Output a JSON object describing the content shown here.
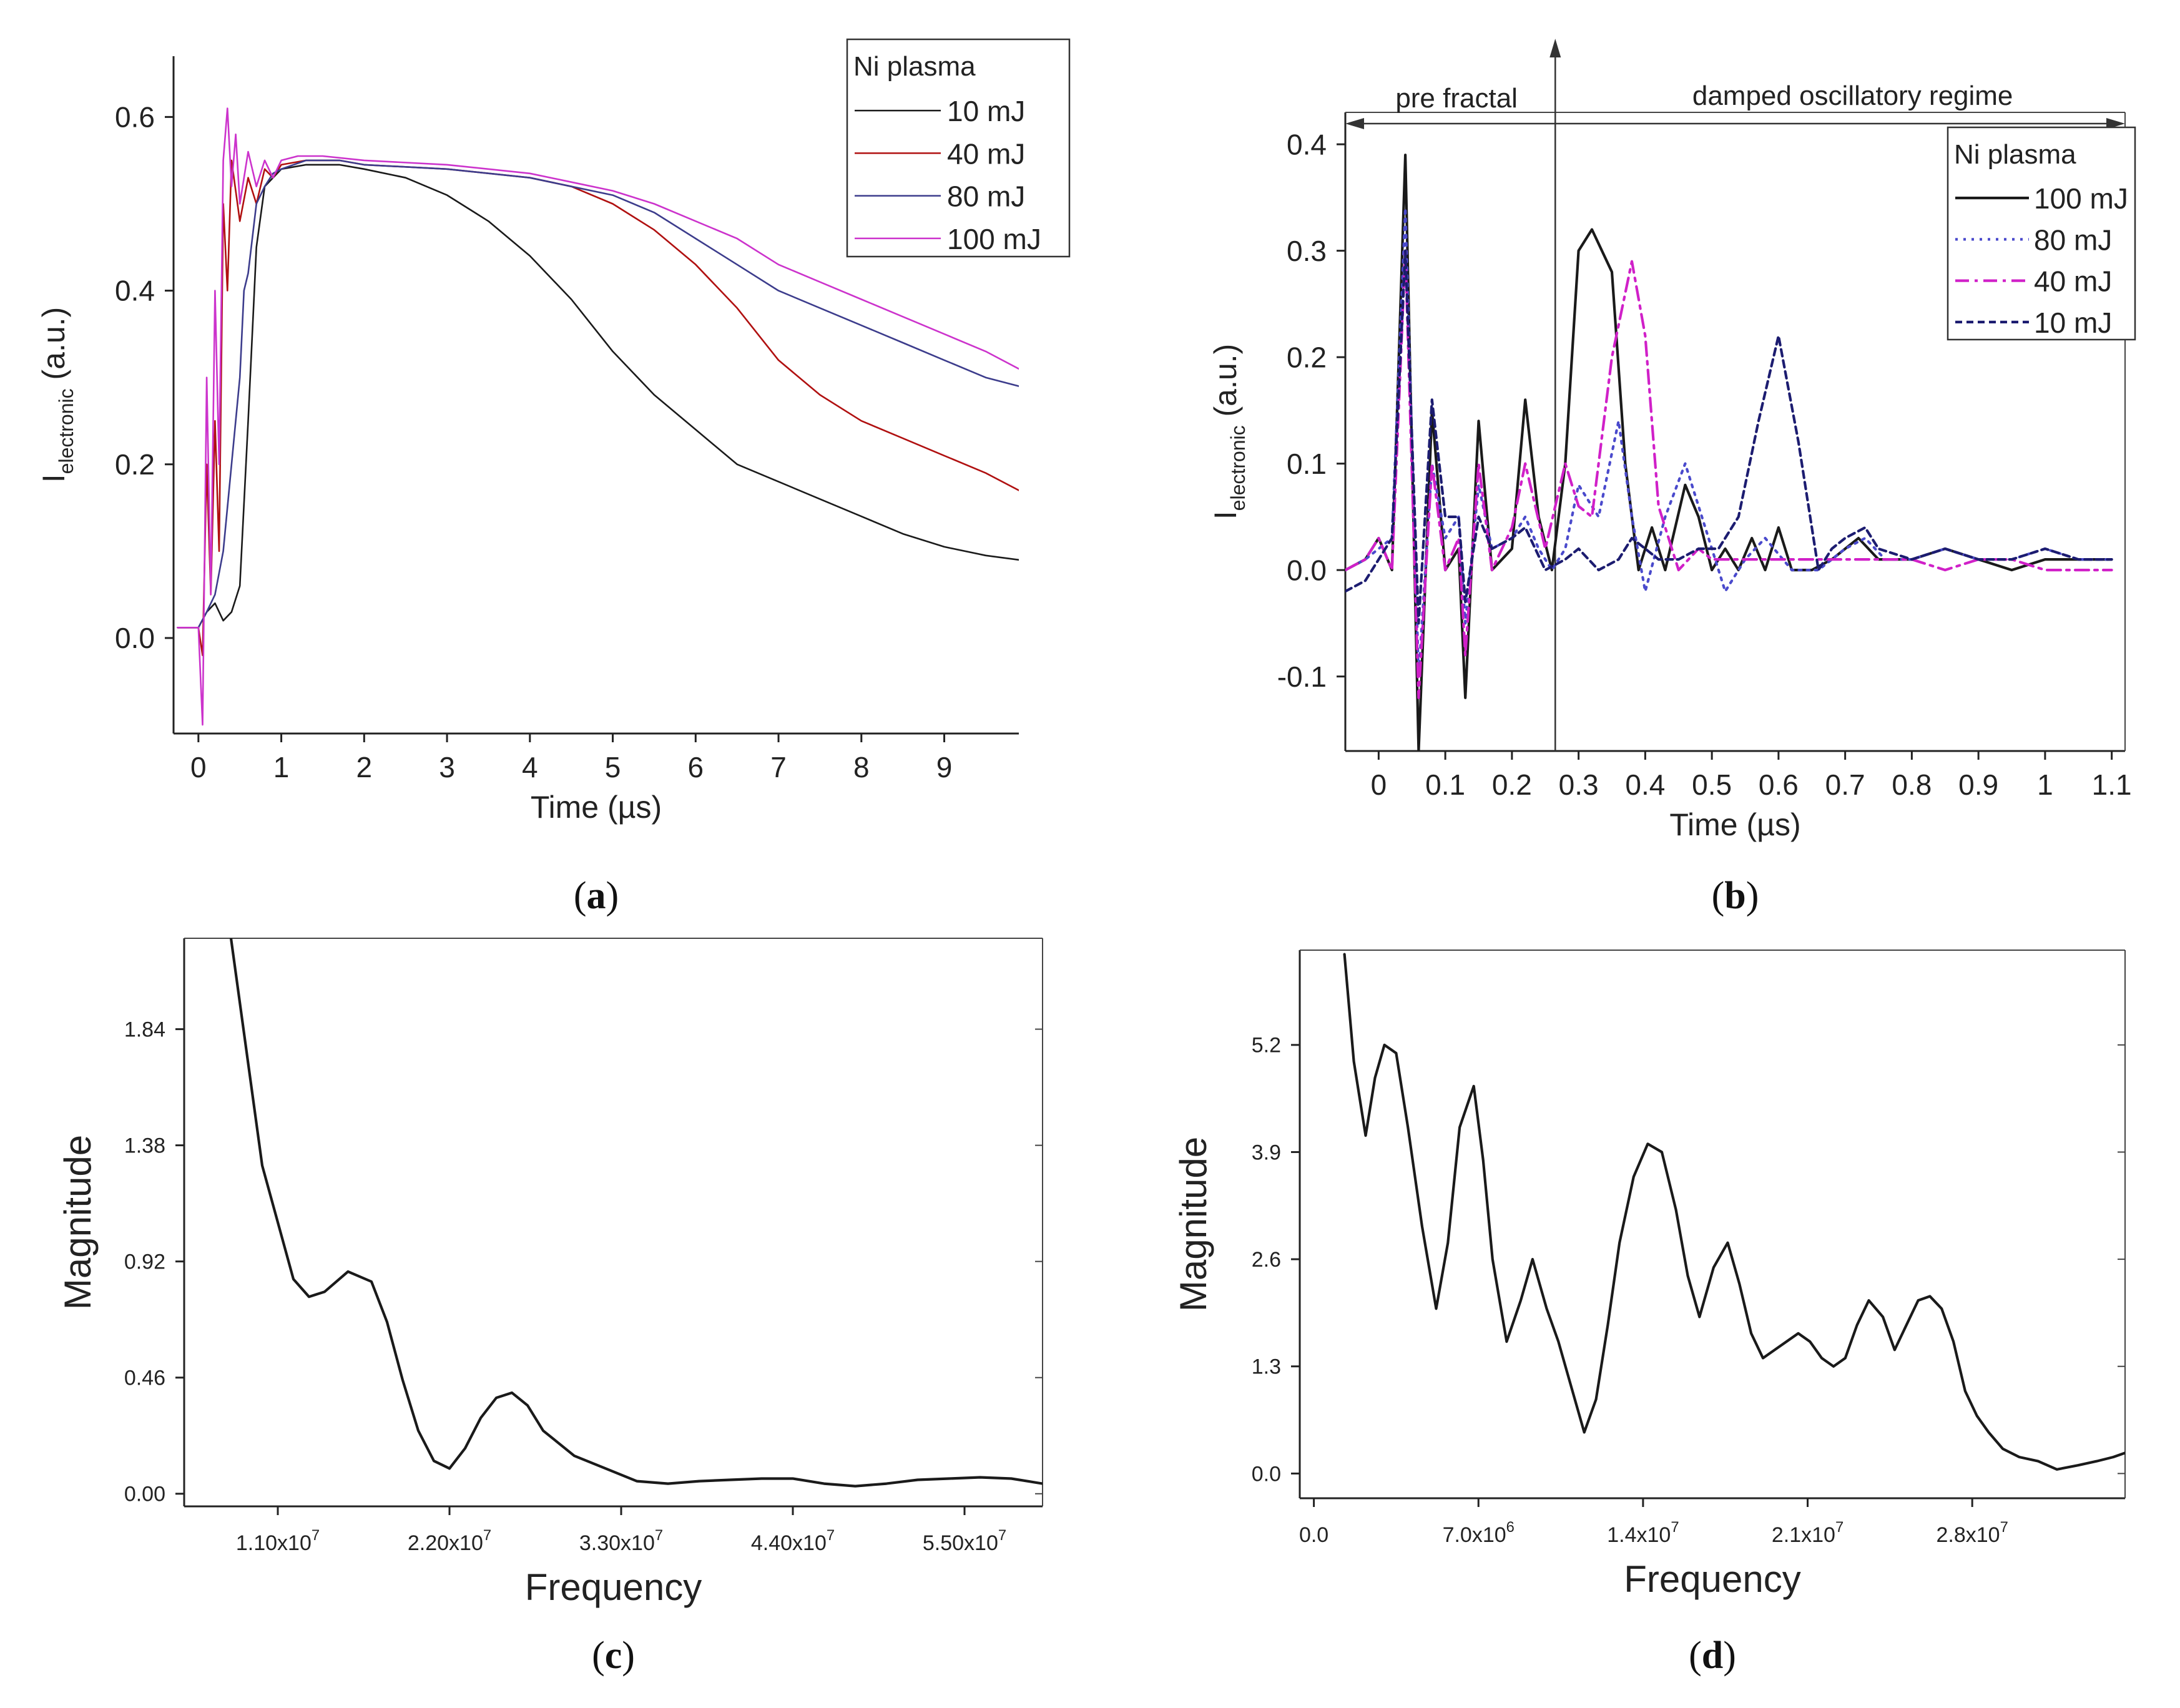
{
  "chart_data": [
    {
      "id": "a",
      "panel_label": "a",
      "type": "line",
      "xlabel": "Time (µs)",
      "ylabel_main": "I",
      "ylabel_sub": "electronic",
      "ylabel_unit": " (a.u.)",
      "xlim": [
        -0.3,
        9.9
      ],
      "ylim": [
        -0.11,
        0.67
      ],
      "xticks": [
        0,
        1,
        2,
        3,
        4,
        5,
        6,
        7,
        8,
        9
      ],
      "yticks": [
        0.0,
        0.2,
        0.4,
        0.6
      ],
      "ytick_labels": [
        "0.0",
        "0.2",
        "0.4",
        "0.6"
      ],
      "legend": {
        "title": "Ni plasma",
        "position": "top-right"
      },
      "series": [
        {
          "name": "10 mJ",
          "color": "#1a1a1a",
          "dash": "",
          "x": [
            -0.25,
            0.0,
            0.1,
            0.2,
            0.3,
            0.4,
            0.5,
            0.6,
            0.7,
            0.8,
            1.0,
            1.3,
            1.7,
            2.0,
            2.5,
            3.0,
            3.5,
            4.0,
            4.5,
            5.0,
            5.5,
            6.0,
            6.5,
            7.0,
            7.5,
            8.0,
            8.5,
            9.0,
            9.5,
            9.9
          ],
          "y": [
            0.012,
            0.012,
            0.03,
            0.04,
            0.02,
            0.03,
            0.06,
            0.25,
            0.45,
            0.52,
            0.54,
            0.545,
            0.545,
            0.54,
            0.53,
            0.51,
            0.48,
            0.44,
            0.39,
            0.33,
            0.28,
            0.24,
            0.2,
            0.18,
            0.16,
            0.14,
            0.12,
            0.105,
            0.095,
            0.09
          ]
        },
        {
          "name": "40 mJ",
          "color": "#b01010",
          "dash": "",
          "x": [
            -0.25,
            0.0,
            0.05,
            0.1,
            0.15,
            0.2,
            0.25,
            0.3,
            0.35,
            0.4,
            0.5,
            0.6,
            0.7,
            0.8,
            0.9,
            1.0,
            1.3,
            1.7,
            2.0,
            3.0,
            4.0,
            4.5,
            5.0,
            5.5,
            6.0,
            6.5,
            7.0,
            7.5,
            8.0,
            8.5,
            9.0,
            9.5,
            9.9
          ],
          "y": [
            0.012,
            0.012,
            -0.02,
            0.2,
            0.05,
            0.25,
            0.1,
            0.5,
            0.4,
            0.55,
            0.48,
            0.53,
            0.5,
            0.54,
            0.53,
            0.545,
            0.55,
            0.55,
            0.545,
            0.54,
            0.53,
            0.52,
            0.5,
            0.47,
            0.43,
            0.38,
            0.32,
            0.28,
            0.25,
            0.23,
            0.21,
            0.19,
            0.17
          ]
        },
        {
          "name": "80 mJ",
          "color": "#3c3c8c",
          "dash": "",
          "x": [
            -0.25,
            0.0,
            0.1,
            0.2,
            0.3,
            0.4,
            0.5,
            0.55,
            0.6,
            0.7,
            0.8,
            0.9,
            1.0,
            1.3,
            1.7,
            2.0,
            3.0,
            4.0,
            4.5,
            5.0,
            5.5,
            6.0,
            6.5,
            7.0,
            7.5,
            8.0,
            8.5,
            9.0,
            9.5,
            9.9
          ],
          "y": [
            0.012,
            0.012,
            0.03,
            0.05,
            0.1,
            0.2,
            0.3,
            0.4,
            0.42,
            0.5,
            0.52,
            0.535,
            0.54,
            0.55,
            0.55,
            0.545,
            0.54,
            0.53,
            0.52,
            0.51,
            0.49,
            0.46,
            0.43,
            0.4,
            0.38,
            0.36,
            0.34,
            0.32,
            0.3,
            0.29
          ]
        },
        {
          "name": "100 mJ",
          "color": "#cc33cc",
          "dash": "",
          "x": [
            -0.25,
            0.0,
            0.05,
            0.1,
            0.15,
            0.2,
            0.25,
            0.3,
            0.35,
            0.4,
            0.45,
            0.5,
            0.6,
            0.7,
            0.8,
            0.9,
            1.0,
            1.2,
            1.5,
            2.0,
            3.0,
            4.0,
            4.5,
            5.0,
            5.5,
            6.0,
            6.5,
            7.0,
            7.5,
            8.0,
            8.5,
            9.0,
            9.5,
            9.9
          ],
          "y": [
            0.012,
            0.012,
            -0.1,
            0.3,
            0.05,
            0.4,
            0.2,
            0.55,
            0.61,
            0.52,
            0.58,
            0.5,
            0.56,
            0.52,
            0.55,
            0.53,
            0.55,
            0.555,
            0.555,
            0.55,
            0.545,
            0.535,
            0.525,
            0.515,
            0.5,
            0.48,
            0.46,
            0.43,
            0.41,
            0.39,
            0.37,
            0.35,
            0.33,
            0.31
          ]
        }
      ]
    },
    {
      "id": "b",
      "panel_label": "b",
      "type": "line",
      "xlabel": "Time (µs)",
      "ylabel_main": "I",
      "ylabel_sub": "electronic",
      "ylabel_unit": " (a.u.)",
      "xlim": [
        -0.05,
        1.12
      ],
      "ylim": [
        -0.17,
        0.43
      ],
      "xticks": [
        0.0,
        0.1,
        0.2,
        0.3,
        0.4,
        0.5,
        0.6,
        0.7,
        0.8,
        0.9,
        1.0,
        1.1
      ],
      "yticks": [
        -0.1,
        0.0,
        0.1,
        0.2,
        0.3,
        0.4
      ],
      "ytick_labels": [
        "-0.1",
        "0.0",
        "0.1",
        "0.2",
        "0.3",
        "0.4"
      ],
      "legend": {
        "title": "Ni plasma",
        "position": "top-right"
      },
      "divider_x": 0.265,
      "annotations": {
        "left": "pre fractal",
        "right": "damped oscillatory regime"
      },
      "series": [
        {
          "name": "100 mJ",
          "color": "#1a1a1a",
          "dash": "",
          "x": [
            -0.05,
            -0.02,
            0.0,
            0.02,
            0.04,
            0.06,
            0.08,
            0.1,
            0.12,
            0.13,
            0.15,
            0.17,
            0.2,
            0.22,
            0.24,
            0.26,
            0.28,
            0.3,
            0.32,
            0.35,
            0.37,
            0.39,
            0.41,
            0.43,
            0.46,
            0.48,
            0.5,
            0.52,
            0.54,
            0.56,
            0.58,
            0.6,
            0.62,
            0.65,
            0.68,
            0.72,
            0.75,
            0.8,
            0.85,
            0.9,
            0.95,
            1.0,
            1.05,
            1.1
          ],
          "y": [
            0.0,
            0.01,
            0.03,
            0.0,
            0.39,
            -0.17,
            0.15,
            0.0,
            0.02,
            -0.12,
            0.14,
            0.0,
            0.02,
            0.16,
            0.05,
            0.0,
            0.1,
            0.3,
            0.32,
            0.28,
            0.1,
            0.0,
            0.04,
            0.0,
            0.08,
            0.05,
            0.0,
            0.02,
            0.0,
            0.03,
            0.0,
            0.04,
            0.0,
            0.0,
            0.01,
            0.03,
            0.01,
            0.01,
            0.02,
            0.01,
            0.0,
            0.01,
            0.01,
            0.01
          ]
        },
        {
          "name": "80 mJ",
          "color": "#4a4acc",
          "dash": "4 9",
          "x": [
            -0.05,
            -0.02,
            0.0,
            0.02,
            0.04,
            0.06,
            0.08,
            0.1,
            0.12,
            0.13,
            0.15,
            0.17,
            0.2,
            0.22,
            0.24,
            0.26,
            0.28,
            0.3,
            0.33,
            0.36,
            0.38,
            0.4,
            0.43,
            0.46,
            0.49,
            0.52,
            0.55,
            0.58,
            0.62,
            0.66,
            0.7,
            0.73,
            0.76,
            0.8,
            0.85,
            0.9,
            0.95,
            1.0,
            1.05,
            1.1
          ],
          "y": [
            0.0,
            0.01,
            0.02,
            0.03,
            0.34,
            -0.1,
            0.1,
            0.03,
            0.05,
            -0.05,
            0.08,
            0.02,
            0.03,
            0.05,
            0.02,
            0.0,
            0.02,
            0.08,
            0.05,
            0.14,
            0.05,
            -0.02,
            0.05,
            0.1,
            0.04,
            -0.02,
            0.01,
            0.03,
            0.0,
            0.0,
            0.02,
            0.03,
            0.01,
            0.01,
            0.02,
            0.01,
            0.01,
            0.02,
            0.01,
            0.01
          ]
        },
        {
          "name": "40 mJ",
          "color": "#d020c8",
          "dash": "22 9 5 9",
          "x": [
            -0.05,
            -0.02,
            0.0,
            0.02,
            0.04,
            0.06,
            0.08,
            0.1,
            0.12,
            0.13,
            0.15,
            0.17,
            0.2,
            0.22,
            0.25,
            0.28,
            0.3,
            0.32,
            0.35,
            0.38,
            0.4,
            0.42,
            0.45,
            0.48,
            0.5,
            0.55,
            0.6,
            0.65,
            0.7,
            0.75,
            0.8,
            0.85,
            0.9,
            0.95,
            1.0,
            1.05,
            1.1
          ],
          "y": [
            0.0,
            0.01,
            0.03,
            0.0,
            0.3,
            -0.12,
            0.1,
            0.0,
            0.03,
            -0.08,
            0.1,
            0.0,
            0.04,
            0.1,
            0.02,
            0.1,
            0.06,
            0.05,
            0.2,
            0.29,
            0.22,
            0.06,
            0.0,
            0.02,
            0.01,
            0.01,
            0.01,
            0.01,
            0.01,
            0.01,
            0.01,
            0.0,
            0.01,
            0.01,
            0.0,
            0.0,
            0.0
          ]
        },
        {
          "name": "10 mJ",
          "color": "#1c1c70",
          "dash": "11 7",
          "x": [
            -0.05,
            -0.02,
            0.0,
            0.02,
            0.04,
            0.06,
            0.08,
            0.1,
            0.12,
            0.13,
            0.15,
            0.17,
            0.2,
            0.22,
            0.25,
            0.28,
            0.3,
            0.33,
            0.36,
            0.38,
            0.4,
            0.42,
            0.45,
            0.48,
            0.51,
            0.54,
            0.57,
            0.6,
            0.63,
            0.66,
            0.68,
            0.7,
            0.73,
            0.75,
            0.8,
            0.85,
            0.9,
            0.95,
            1.0,
            1.05,
            1.1
          ],
          "y": [
            -0.02,
            -0.01,
            0.01,
            0.03,
            0.3,
            -0.05,
            0.16,
            0.05,
            0.05,
            -0.03,
            0.05,
            0.02,
            0.03,
            0.04,
            0.0,
            0.01,
            0.02,
            0.0,
            0.01,
            0.03,
            0.02,
            0.01,
            0.01,
            0.02,
            0.02,
            0.05,
            0.14,
            0.22,
            0.12,
            0.0,
            0.02,
            0.03,
            0.04,
            0.02,
            0.01,
            0.02,
            0.01,
            0.01,
            0.02,
            0.01,
            0.01
          ]
        }
      ]
    },
    {
      "id": "c",
      "panel_label": "c",
      "type": "line",
      "xlabel": "Frequency",
      "ylabel": "Magnitude",
      "xlim": [
        5000000,
        60000000
      ],
      "ylim": [
        -0.05,
        2.2
      ],
      "xticks": [
        11000000,
        22000000,
        33000000,
        44000000,
        55000000
      ],
      "xtick_mantissa": [
        "1.10",
        "2.20",
        "3.30",
        "4.40",
        "5.50"
      ],
      "xtick_exponent": "7",
      "yticks": [
        0.0,
        0.46,
        0.92,
        1.38,
        1.84
      ],
      "ytick_labels": [
        "0.00",
        "0.46",
        "0.92",
        "1.38",
        "1.84"
      ],
      "series": [
        {
          "name": "magnitude",
          "color": "#1a1a1a",
          "dash": "",
          "x": [
            8000000,
            10000000,
            12000000,
            13000000,
            14000000,
            15500000,
            17000000,
            18000000,
            19000000,
            20000000,
            21000000,
            22000000,
            23000000,
            24000000,
            25000000,
            26000000,
            27000000,
            28000000,
            30000000,
            32000000,
            34000000,
            36000000,
            38000000,
            40000000,
            42000000,
            44000000,
            46000000,
            48000000,
            50000000,
            52000000,
            54000000,
            56000000,
            58000000,
            60000000
          ],
          "y": [
            2.2,
            1.3,
            0.85,
            0.78,
            0.8,
            0.88,
            0.84,
            0.68,
            0.45,
            0.25,
            0.13,
            0.1,
            0.18,
            0.3,
            0.38,
            0.4,
            0.35,
            0.25,
            0.15,
            0.1,
            0.05,
            0.04,
            0.05,
            0.055,
            0.06,
            0.06,
            0.04,
            0.03,
            0.04,
            0.055,
            0.06,
            0.065,
            0.06,
            0.04
          ]
        }
      ]
    },
    {
      "id": "d",
      "panel_label": "d",
      "type": "line",
      "xlabel": "Frequency",
      "ylabel": "Magnitude",
      "xlim": [
        -600000,
        34500000
      ],
      "ylim": [
        -0.3,
        6.35
      ],
      "xticks": [
        0,
        7000000,
        14000000,
        21000000,
        28000000
      ],
      "xtick_mantissa": [
        "0.0",
        "7.0",
        "1.4",
        "2.1",
        "2.8"
      ],
      "xtick_exponent": [
        "",
        "6",
        "7",
        "7",
        "7"
      ],
      "yticks": [
        0.0,
        1.3,
        2.6,
        3.9,
        5.2
      ],
      "ytick_labels": [
        "0.0",
        "1.3",
        "2.6",
        "3.9",
        "5.2"
      ],
      "series": [
        {
          "name": "magnitude",
          "color": "#1a1a1a",
          "dash": "",
          "x": [
            1300000,
            1700000,
            2200000,
            2600000,
            3000000,
            3500000,
            4000000,
            4600000,
            5200000,
            5700000,
            6200000,
            6800000,
            7200000,
            7600000,
            8200000,
            8800000,
            9300000,
            9900000,
            10400000,
            10900000,
            11500000,
            12000000,
            12500000,
            13000000,
            13600000,
            14200000,
            14800000,
            15400000,
            15900000,
            16400000,
            17000000,
            17600000,
            18100000,
            18600000,
            19100000,
            19600000,
            20100000,
            20600000,
            21100000,
            21600000,
            22100000,
            22600000,
            23100000,
            23600000,
            24200000,
            24700000,
            25200000,
            25700000,
            26200000,
            26700000,
            27200000,
            27700000,
            28200000,
            28700000,
            29300000,
            30000000,
            30800000,
            31600000,
            32500000,
            33300000,
            34000000,
            34500000
          ],
          "y": [
            6.3,
            5.0,
            4.1,
            4.8,
            5.2,
            5.1,
            4.2,
            3.0,
            2.0,
            2.8,
            4.2,
            4.7,
            3.8,
            2.6,
            1.6,
            2.1,
            2.6,
            2.0,
            1.6,
            1.1,
            0.5,
            0.9,
            1.8,
            2.8,
            3.6,
            4.0,
            3.9,
            3.2,
            2.4,
            1.9,
            2.5,
            2.8,
            2.3,
            1.7,
            1.4,
            1.5,
            1.6,
            1.7,
            1.6,
            1.4,
            1.3,
            1.4,
            1.8,
            2.1,
            1.9,
            1.5,
            1.8,
            2.1,
            2.15,
            2.0,
            1.6,
            1.0,
            0.7,
            0.5,
            0.3,
            0.2,
            0.15,
            0.05,
            0.1,
            0.15,
            0.2,
            0.25
          ]
        }
      ]
    }
  ]
}
